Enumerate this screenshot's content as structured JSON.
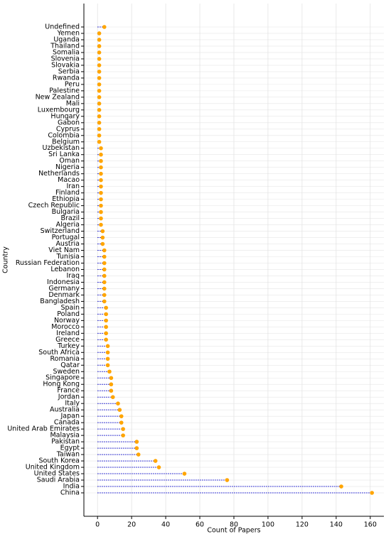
{
  "chart_data": {
    "type": "lollipop",
    "x_label": "Count of Papers",
    "y_label": "Country",
    "categories": [
      "Undefined",
      "Yemen",
      "Uganda",
      "Thailand",
      "Somalia",
      "Slovenia",
      "Slovakia",
      "Serbia",
      "Rwanda",
      "Peru",
      "Palestine",
      "New Zealand",
      "Mali",
      "Luxembourg",
      "Hungary",
      "Gabon",
      "Cyprus",
      "Colombia",
      "Belgium",
      "Uzbekistan",
      "Sri Lanka",
      "Oman",
      "Nigeria",
      "Netherlands",
      "Macao",
      "Iran",
      "Finland",
      "Ethiopia",
      "Czech Republic",
      "Bulgaria",
      "Brazil",
      "Algeria",
      "Switzerland",
      "Portugal",
      "Austria",
      "Viet Nam",
      "Tunisia",
      "Russian Federation",
      "Lebanon",
      "Iraq",
      "Indonesia",
      "Germany",
      "Denmark",
      "Bangladesh",
      "Spain",
      "Poland",
      "Norway",
      "Morocco",
      "Ireland",
      "Greece",
      "Turkey",
      "South Africa",
      "Romania",
      "Qatar",
      "Sweden",
      "Singapore",
      "Hong Kong",
      "France",
      "Jordan",
      "Italy",
      "Australia",
      "Japan",
      "Canada",
      "United Arab Emirates",
      "Malaysia",
      "Pakistan",
      "Egypt",
      "Taiwan",
      "South Korea",
      "United Kingdom",
      "United States",
      "Saudi Arabia",
      "India",
      "China"
    ],
    "values": [
      4,
      1,
      1,
      1,
      1,
      1,
      1,
      1,
      1,
      1,
      1,
      1,
      1,
      1,
      1,
      1,
      1,
      1,
      1,
      2,
      2,
      2,
      2,
      2,
      2,
      2,
      2,
      2,
      2,
      2,
      2,
      2,
      3,
      3,
      3,
      4,
      4,
      4,
      4,
      4,
      4,
      4,
      4,
      4,
      5,
      5,
      5,
      5,
      5,
      5,
      6,
      6,
      6,
      6,
      7,
      8,
      8,
      8,
      9,
      12,
      13,
      14,
      14,
      15,
      15,
      23,
      23,
      24,
      34,
      36,
      51,
      76,
      143,
      161
    ],
    "color": "#ffa500",
    "line_color": "#0000cc",
    "xlim": [
      -8,
      168
    ],
    "xticks": [
      0,
      20,
      40,
      60,
      80,
      100,
      120,
      140,
      160
    ],
    "grid": true
  }
}
